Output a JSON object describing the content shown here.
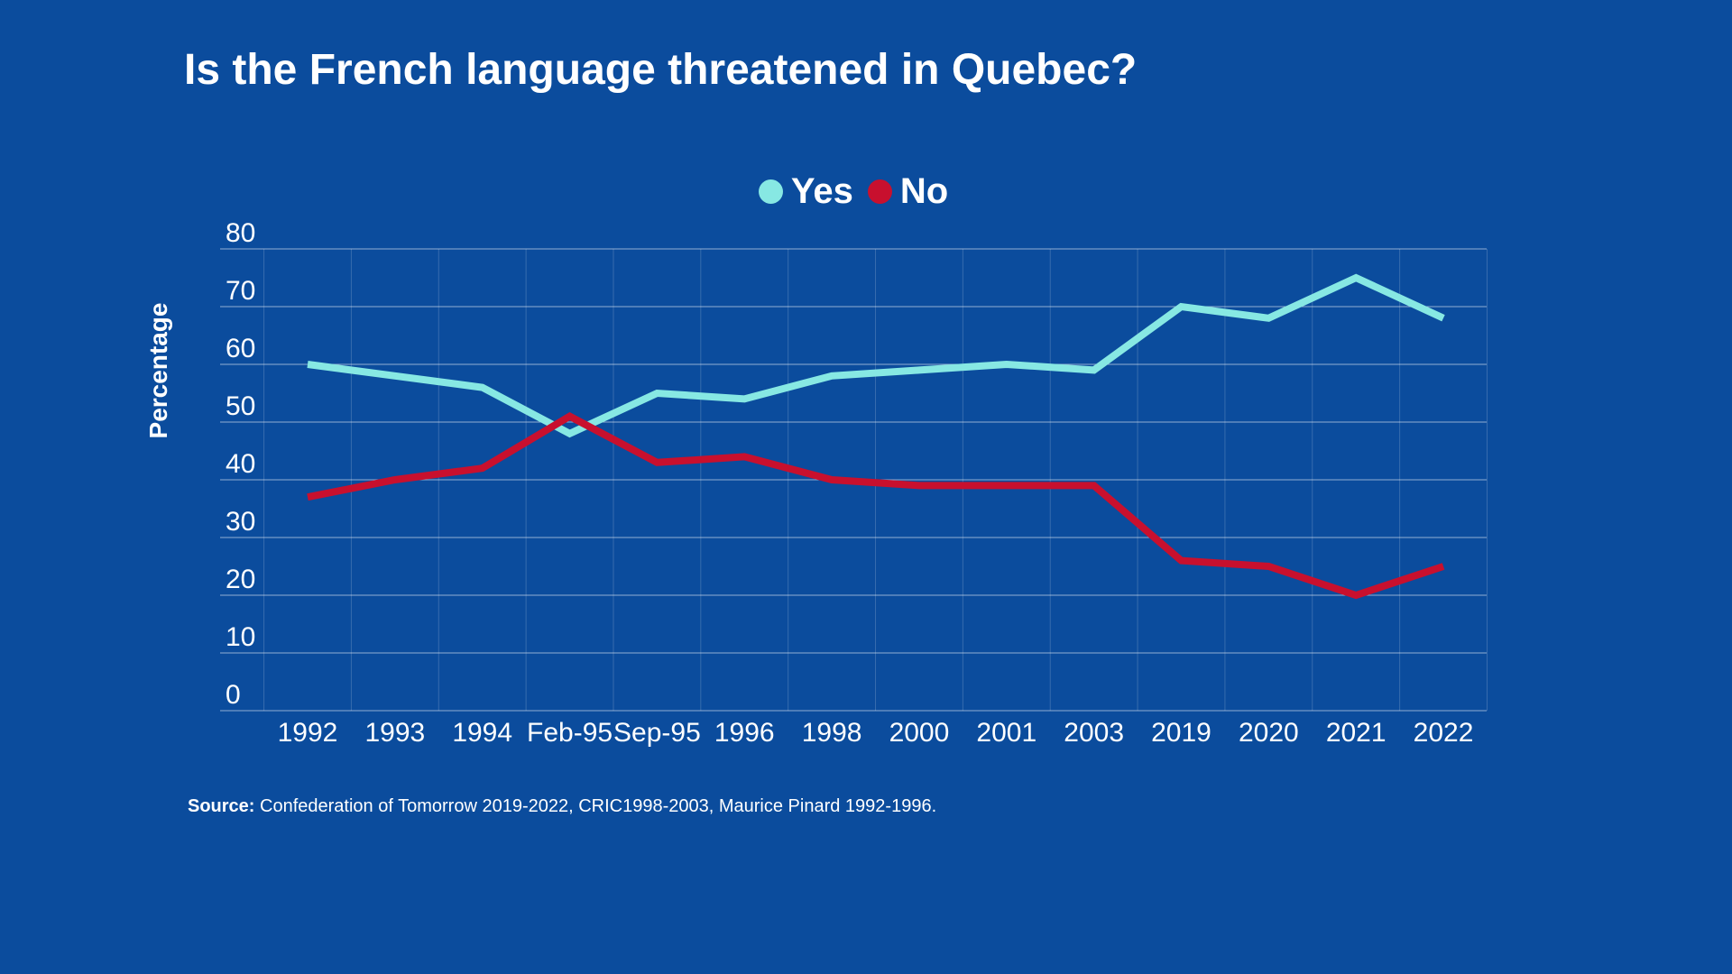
{
  "page": {
    "background_color": "#0B4C9D",
    "text_color": "#FFFFFF",
    "gridline_color": "rgba(255,255,255,0.55)",
    "vertical_gridline_color": "rgba(255,255,255,0.18)"
  },
  "title": "Is the French language threatened in Quebec?",
  "legend": {
    "items": [
      {
        "label": "Yes",
        "color": "#87E8E3"
      },
      {
        "label": "No",
        "color": "#C8102E"
      }
    ]
  },
  "source": {
    "label": "Source:",
    "text": "Confederation of Tomorrow 2019-2022, CRIC1998-2003, Maurice Pinard 1992-1996."
  },
  "chart_data": {
    "type": "line",
    "title": "Is the French language threatened in Quebec?",
    "categories": [
      "1992",
      "1993",
      "1994",
      "Feb-95",
      "Sep-95",
      "1996",
      "1998",
      "2000",
      "2001",
      "2003",
      "2019",
      "2020",
      "2021",
      "2022"
    ],
    "series": [
      {
        "name": "Yes",
        "color": "#87E8E3",
        "values": [
          60,
          58,
          56,
          48,
          55,
          54,
          58,
          59,
          60,
          59,
          70,
          68,
          75,
          68
        ]
      },
      {
        "name": "No",
        "color": "#C8102E",
        "values": [
          37,
          40,
          42,
          51,
          43,
          44,
          40,
          39,
          39,
          39,
          26,
          25,
          20,
          25
        ]
      }
    ],
    "xlabel": "",
    "ylabel": "Percentage",
    "ylim": [
      0,
      80
    ],
    "ytick_step": 10,
    "grid": {
      "horizontal_major": true,
      "vertical_between_categories": true
    },
    "legend_position": "top-center",
    "line_width": 8
  }
}
